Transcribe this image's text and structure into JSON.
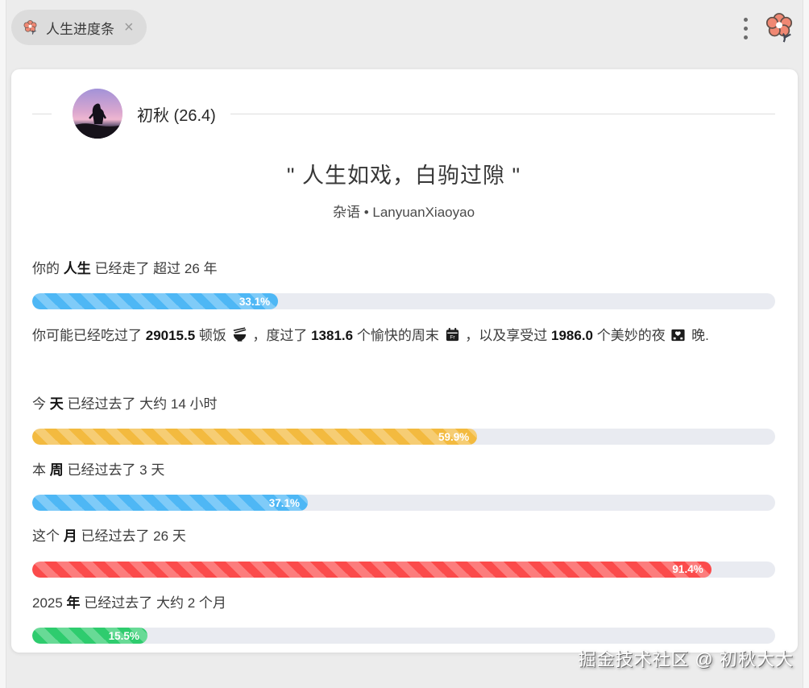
{
  "tab": {
    "label": "人生进度条",
    "close_glyph": "×"
  },
  "profile": {
    "name": "初秋 (26.4)"
  },
  "quote": {
    "text": "\" 人生如戏，白驹过隙 \"",
    "source": "杂语 • LanyuanXiaoyao"
  },
  "stats": {
    "p1": "你可能已经吃过了 ",
    "meals": "29015.5",
    "p2": " 顿饭 ",
    "p3": " ，度过了 ",
    "weekends": "1381.6",
    "p4": " 个愉快的周末 ",
    "p5": " ，以及享受过 ",
    "nights": "1986.0",
    "p6": " 个美妙的夜 ",
    "p7": " 晚.",
    "icon_names": [
      "rice-bowl-icon",
      "calendar-friday-icon",
      "night-hotel-icon"
    ]
  },
  "sections": [
    {
      "id": "life",
      "prefix": "你的 ",
      "keyword": "人生",
      "suffix": " 已经走了 超过 26 年",
      "percent": 33.1,
      "label": "33.1%",
      "color": "blue"
    },
    {
      "id": "day",
      "prefix": "今 ",
      "keyword": "天",
      "suffix": " 已经过去了 大约 14 小时",
      "percent": 59.9,
      "label": "59.9%",
      "color": "yellow"
    },
    {
      "id": "week",
      "prefix": "本 ",
      "keyword": "周",
      "suffix": " 已经过去了 3 天",
      "percent": 37.1,
      "label": "37.1%",
      "color": "blue"
    },
    {
      "id": "month",
      "prefix": "这个 ",
      "keyword": "月",
      "suffix": " 已经过去了 26 天",
      "percent": 91.4,
      "label": "91.4%",
      "color": "red"
    },
    {
      "id": "year",
      "prefix": "2025 ",
      "keyword": "年",
      "suffix": " 已经过去了 大约 2 个月",
      "percent": 15.5,
      "label": "15.5%",
      "color": "green"
    }
  ],
  "colors": {
    "blue": "#4eb7f5",
    "yellow": "#f3ba3f",
    "red": "#fb4b4b",
    "green": "#2ecc6e",
    "track": "#e9ebf1",
    "flower": "#f08873"
  },
  "watermark": "掘金技术社区 @ 初秋大大"
}
